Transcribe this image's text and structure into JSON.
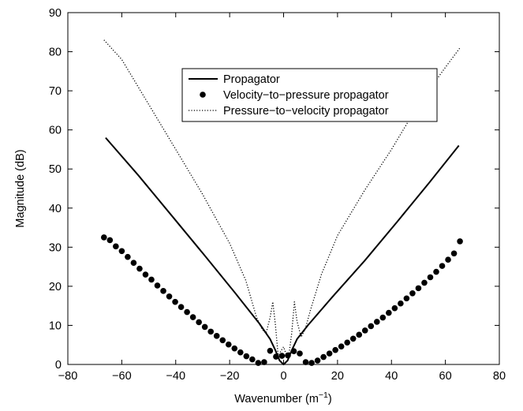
{
  "chart_data": {
    "type": "line",
    "title": "",
    "xlabel": "Wavenumber (m",
    "xlabel_sup": "−1",
    "xlabel_close": ")",
    "ylabel": "Magnitude (dB)",
    "xlim": [
      -80,
      80
    ],
    "ylim": [
      0,
      90
    ],
    "xticks": [
      -80,
      -60,
      -40,
      -20,
      0,
      20,
      40,
      60,
      80
    ],
    "yticks": [
      0,
      10,
      20,
      30,
      40,
      50,
      60,
      70,
      80,
      90
    ],
    "xtick_labels": [
      "−80",
      "−60",
      "−40",
      "−20",
      "0",
      "20",
      "40",
      "60",
      "80"
    ],
    "ytick_labels": [
      "0",
      "10",
      "20",
      "30",
      "40",
      "50",
      "60",
      "70",
      "80",
      "90"
    ],
    "grid": false,
    "legend_position": "top-center",
    "series": [
      {
        "name": "Propagator",
        "style": "solid",
        "x": [
          -66,
          -54,
          -42,
          -30,
          -18,
          -9,
          -5,
          -3,
          -1.5,
          0,
          1.5,
          3,
          5,
          9,
          18,
          30,
          42,
          54,
          65
        ],
        "y": [
          58,
          48.5,
          38.5,
          28.5,
          18.3,
          10.5,
          6.5,
          3.6,
          1.0,
          0,
          1.0,
          3.6,
          6.5,
          10,
          17.2,
          26.5,
          36.4,
          46.5,
          56
        ]
      },
      {
        "name": "Velocity−to−pressure propagator",
        "style": "markers",
        "x": [
          -66.6,
          -64.4,
          -62.2,
          -60.0,
          -57.8,
          -55.6,
          -53.4,
          -51.2,
          -49.0,
          -46.8,
          -44.6,
          -42.4,
          -40.2,
          -38.0,
          -35.8,
          -33.6,
          -31.4,
          -29.2,
          -27.0,
          -24.8,
          -22.6,
          -20.4,
          -18.2,
          -16.0,
          -13.8,
          -11.6,
          -9.4,
          -7.2,
          -5.0,
          -2.8,
          -0.6,
          1.6,
          3.8,
          6.0,
          8.2,
          10.4,
          12.6,
          14.8,
          17.0,
          19.2,
          21.4,
          23.6,
          25.8,
          28.0,
          30.2,
          32.4,
          34.6,
          36.8,
          39.0,
          41.2,
          43.4,
          45.6,
          47.8,
          50.0,
          52.2,
          54.4,
          56.6,
          58.8,
          61.0,
          63.2,
          65.4
        ],
        "y": [
          32.5,
          31.8,
          30.2,
          29.0,
          27.5,
          26.0,
          24.5,
          23.0,
          21.7,
          20.2,
          18.8,
          17.4,
          16.0,
          14.7,
          13.4,
          12.1,
          10.8,
          9.6,
          8.4,
          7.3,
          6.2,
          5.1,
          4.1,
          3.1,
          2.1,
          1.3,
          0.4,
          0.6,
          3.5,
          2.0,
          2.2,
          2.3,
          3.4,
          2.8,
          0.6,
          0.4,
          1.0,
          1.9,
          2.8,
          3.7,
          4.6,
          5.6,
          6.6,
          7.6,
          8.7,
          9.8,
          10.9,
          12.0,
          13.2,
          14.4,
          15.6,
          16.9,
          18.2,
          19.5,
          20.9,
          22.3,
          23.7,
          25.2,
          26.8,
          28.4,
          31.5
        ]
      },
      {
        "name": "Pressure−to−velocity propagator",
        "style": "dotted",
        "x": [
          -66.6,
          -60,
          -50,
          -40,
          -30,
          -20,
          -14,
          -10,
          -8,
          -6.5,
          -5,
          -4,
          -3,
          -2,
          -1,
          0,
          1,
          2,
          3,
          4,
          5,
          6.5,
          8,
          10,
          14,
          20,
          30,
          40,
          50,
          60,
          65.4
        ],
        "y": [
          83,
          78,
          66.5,
          55,
          43.5,
          31,
          21.5,
          12,
          9,
          8,
          12,
          16,
          10,
          2,
          3.5,
          4.5,
          2.5,
          2.5,
          8,
          16,
          11,
          7,
          9,
          14,
          23,
          33,
          44.5,
          55,
          66.5,
          76,
          81
        ]
      }
    ]
  }
}
